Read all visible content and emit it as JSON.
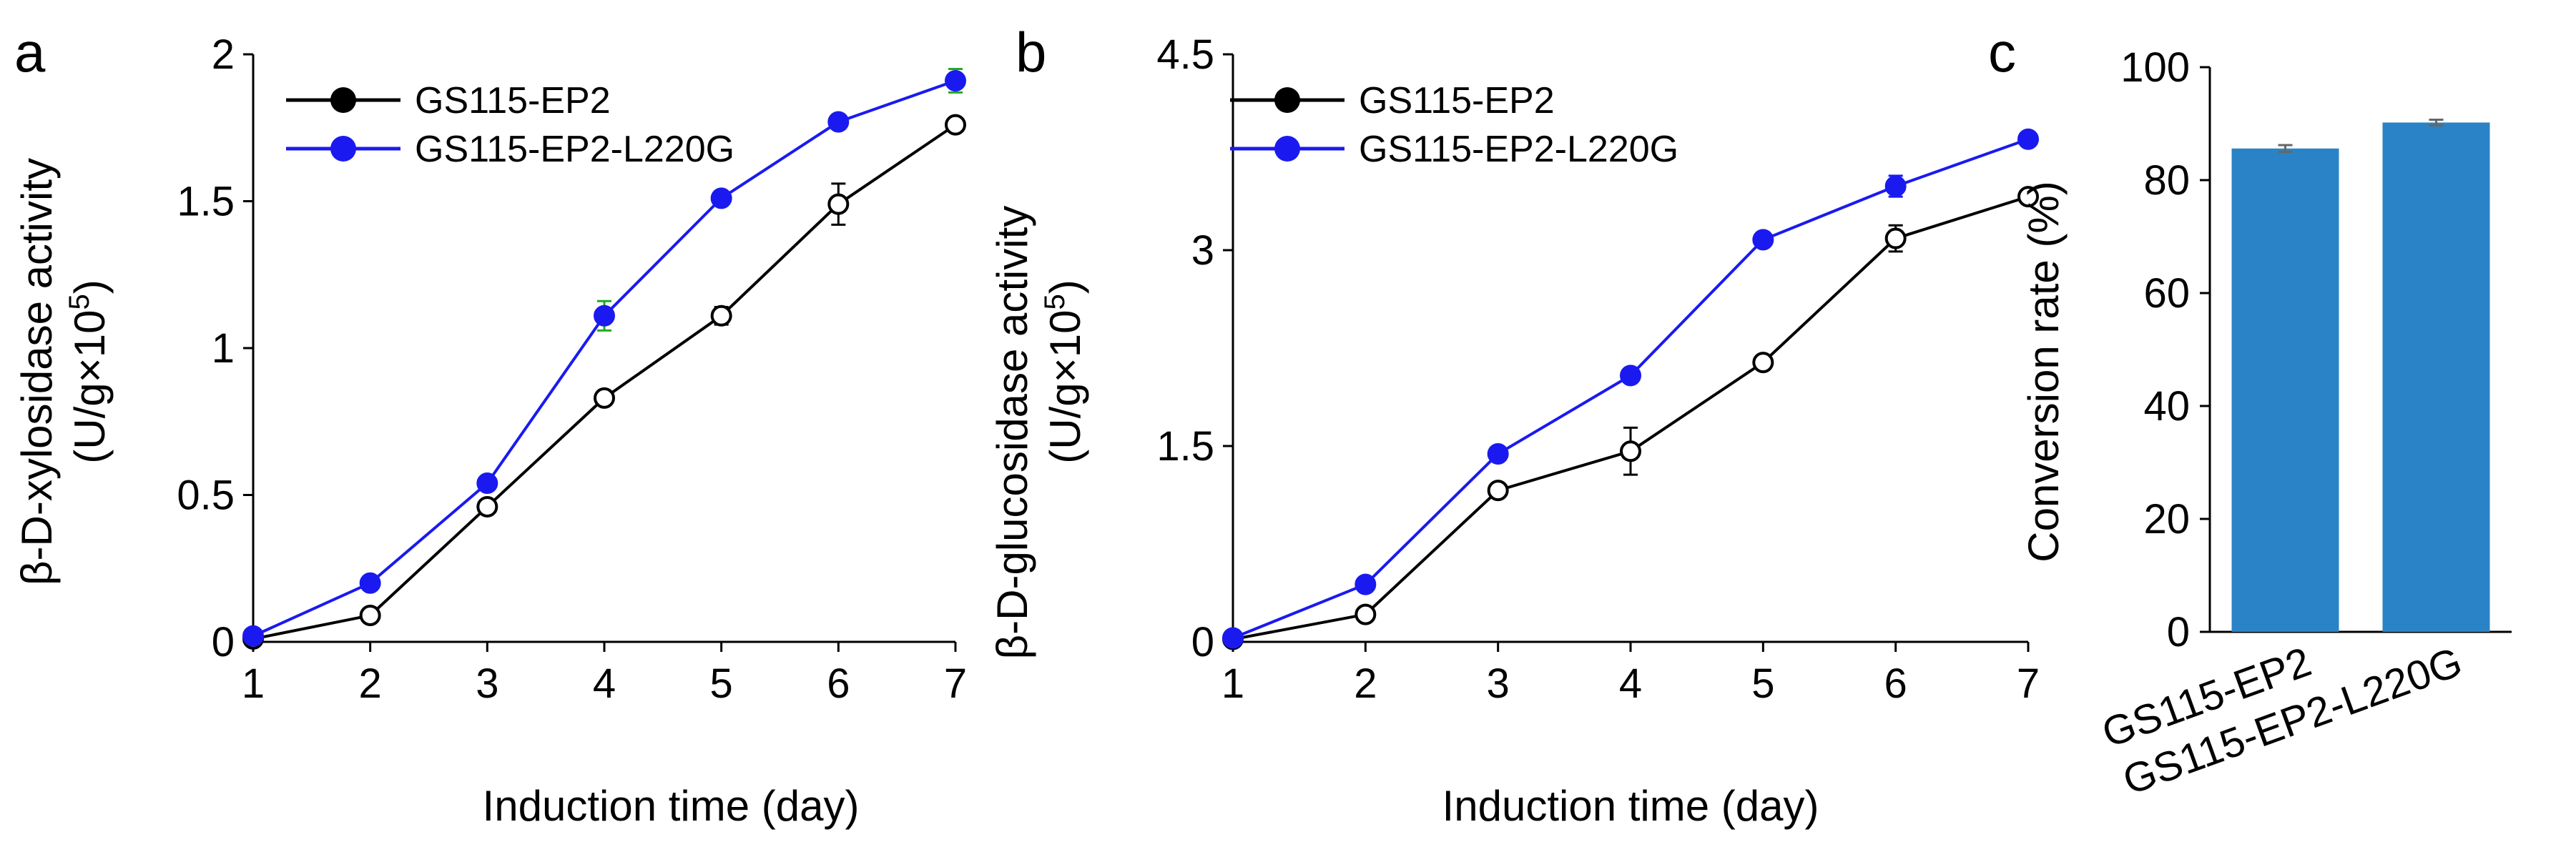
{
  "colors": {
    "black": "#000000",
    "blue": "#1a1af0",
    "bar": "#2a83c6",
    "error_green": "#22aa22"
  },
  "chart_data": [
    {
      "panel": "a",
      "type": "line",
      "xlabel": "Induction time (day)",
      "ylabel": "β-D-xylosidase activity",
      "ylabel2_prefix": "(U/g×10",
      "ylabel2_sup": "5",
      "ylabel2_suffix": ")",
      "x": [
        1,
        2,
        3,
        4,
        5,
        6,
        7
      ],
      "x_ticks": [
        "1",
        "2",
        "3",
        "4",
        "5",
        "6",
        "7"
      ],
      "ylim": [
        0,
        2
      ],
      "y_ticks": [
        0,
        0.5,
        1,
        1.5,
        2
      ],
      "y_tick_labels": [
        "0",
        "0.5",
        "1",
        "1.5",
        "2"
      ],
      "series": [
        {
          "name": "GS115-EP2",
          "color": "#000000",
          "marker": "open-circle",
          "values": [
            0.01,
            0.09,
            0.46,
            0.83,
            1.11,
            1.49,
            1.76
          ],
          "errors": [
            0.005,
            0.01,
            0.02,
            0.02,
            0.03,
            0.07,
            0.02
          ]
        },
        {
          "name": "GS115-EP2-L220G",
          "color": "#1a1af0",
          "marker": "filled-circle",
          "values": [
            0.02,
            0.2,
            0.54,
            1.11,
            1.51,
            1.77,
            1.91
          ],
          "errors": [
            0.005,
            0.01,
            0.02,
            0.05,
            0.02,
            0.02,
            0.04
          ]
        }
      ]
    },
    {
      "panel": "b",
      "type": "line",
      "xlabel": "Induction time (day)",
      "ylabel": "β-D-glucosidase activity",
      "ylabel2_prefix": "(U/g×10",
      "ylabel2_sup": "5",
      "ylabel2_suffix": ")",
      "x": [
        1,
        2,
        3,
        4,
        5,
        6,
        7
      ],
      "x_ticks": [
        "1",
        "2",
        "3",
        "4",
        "5",
        "6",
        "7"
      ],
      "ylim": [
        0,
        4.5
      ],
      "y_ticks": [
        0,
        1.5,
        3,
        4.5
      ],
      "y_tick_labels": [
        "0",
        "1.5",
        "3",
        "4.5"
      ],
      "series": [
        {
          "name": "GS115-EP2",
          "color": "#000000",
          "marker": "open-circle",
          "values": [
            0.02,
            0.21,
            1.16,
            1.46,
            2.14,
            3.09,
            3.41
          ],
          "errors": [
            0.01,
            0.02,
            0.05,
            0.18,
            0.04,
            0.1,
            0.03
          ]
        },
        {
          "name": "GS115-EP2-L220G",
          "color": "#1a1af0",
          "marker": "filled-circle",
          "values": [
            0.03,
            0.44,
            1.44,
            2.04,
            3.08,
            3.49,
            3.85
          ],
          "errors": [
            0.01,
            0.02,
            0.03,
            0.03,
            0.03,
            0.08,
            0.03
          ]
        }
      ]
    },
    {
      "panel": "c",
      "type": "bar",
      "categories": [
        "GS115-EP2",
        "GS115-EP2-L220G"
      ],
      "values": [
        85.6,
        90.2
      ],
      "errors": [
        0.6,
        0.5
      ],
      "ylabel": "Conversion rate (%)",
      "xlabel": "",
      "ylim": [
        0,
        100
      ],
      "y_ticks": [
        0,
        20,
        40,
        60,
        80,
        100
      ],
      "y_tick_labels": [
        "0",
        "20",
        "40",
        "60",
        "80",
        "100"
      ],
      "color": "#2a83c6"
    }
  ]
}
